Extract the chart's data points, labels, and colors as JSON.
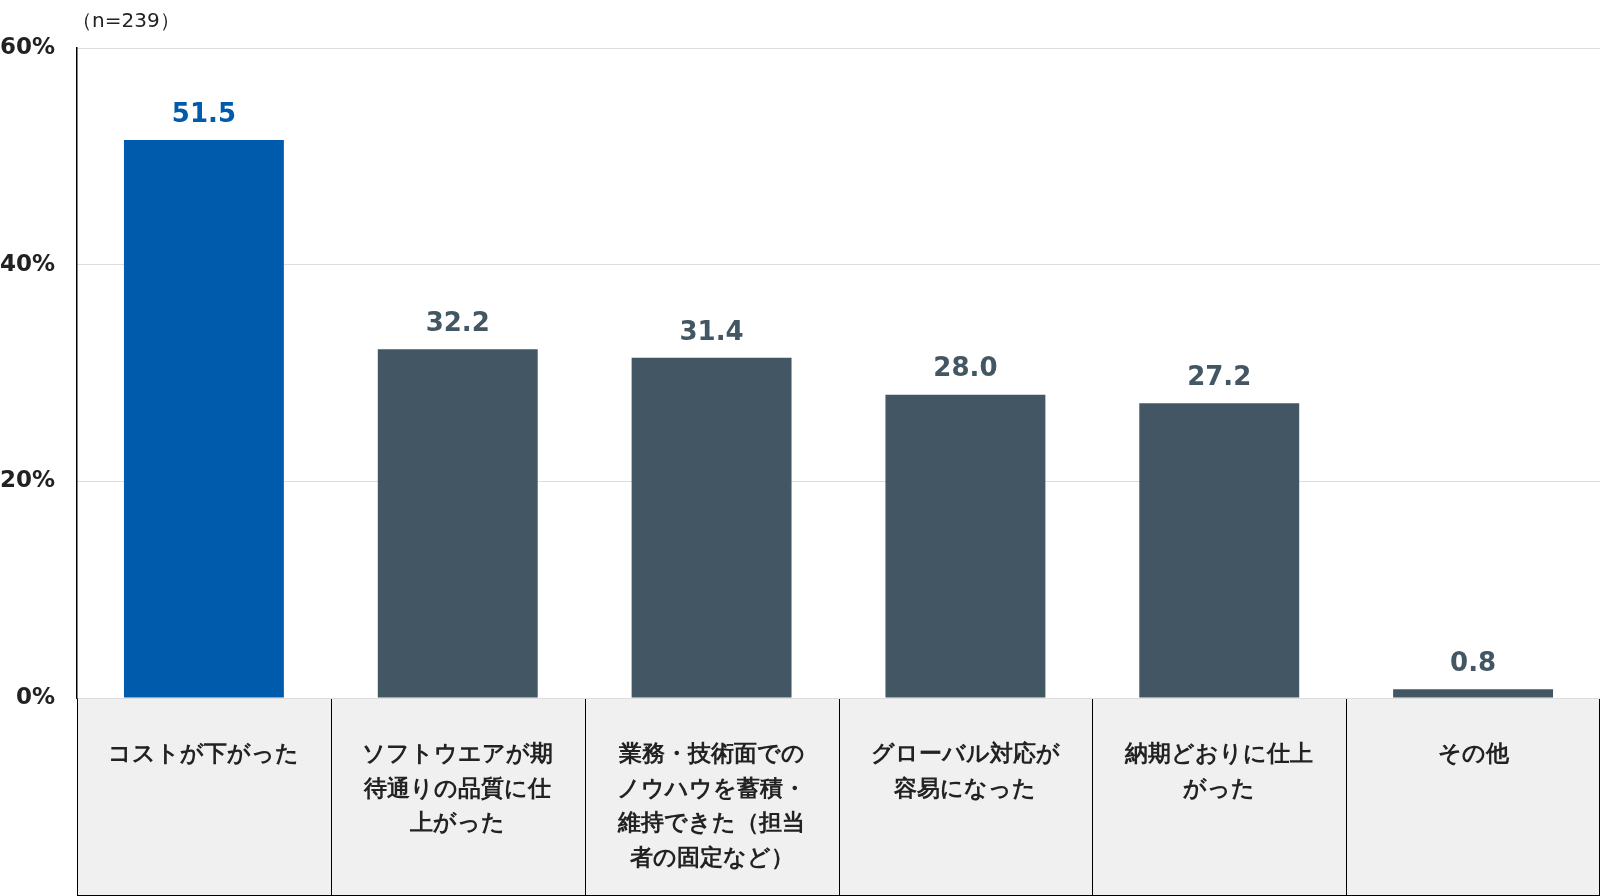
{
  "chart_data": {
    "type": "bar",
    "categories": [
      "コストが下がった",
      "ソフトウエアが期待通りの品質に仕上がった",
      "業務・技術面でのノウハウを蓄積・維持できた（担当者の固定など）",
      "グローバル対応が容易になった",
      "納期どおりに仕上がった",
      "その他"
    ],
    "values": [
      51.5,
      32.2,
      31.4,
      28.0,
      27.2,
      0.8
    ],
    "colors": [
      "#005bac",
      "#435663",
      "#435663",
      "#435663",
      "#435663",
      "#435663"
    ],
    "ylim": [
      0,
      60
    ],
    "yticks": [
      {
        "value": 0,
        "label": "0%"
      },
      {
        "value": 20,
        "label": "20%"
      },
      {
        "value": 40,
        "label": "40%"
      },
      {
        "value": 60,
        "label": "60%"
      }
    ],
    "grid": "y",
    "legend": false,
    "data_labels": true,
    "value_labels": [
      "51.5",
      "32.2",
      "31.4",
      "28.0",
      "27.2",
      "0.8"
    ],
    "annotations": [
      "（n=239）"
    ]
  }
}
